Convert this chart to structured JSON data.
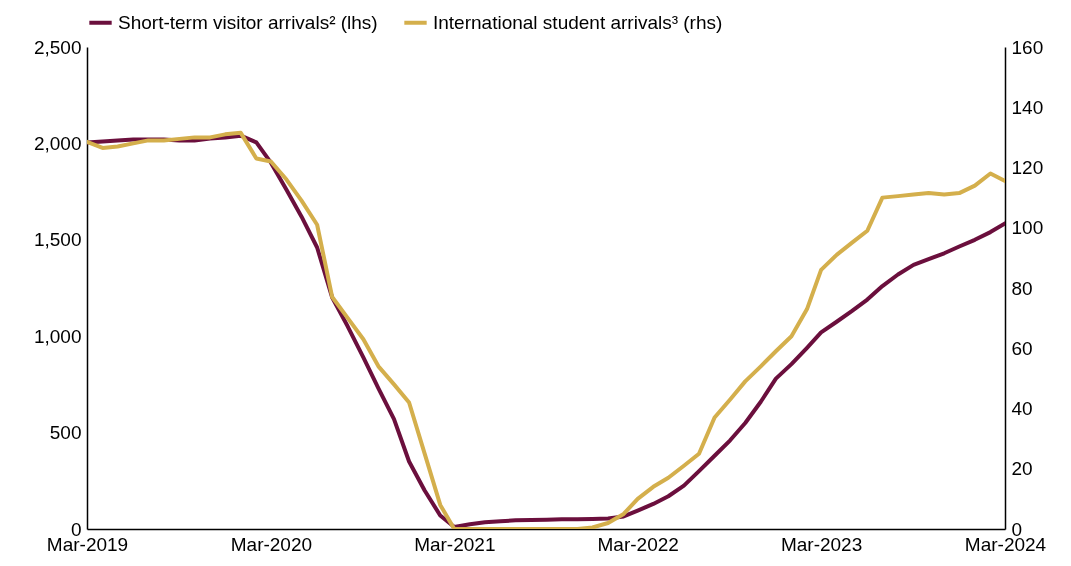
{
  "chart_data": {
    "type": "line",
    "legend": "top",
    "x": [
      "2019-03",
      "2019-04",
      "2019-05",
      "2019-06",
      "2019-07",
      "2019-08",
      "2019-09",
      "2019-10",
      "2019-11",
      "2019-12",
      "2020-01",
      "2020-02",
      "2020-03",
      "2020-04",
      "2020-05",
      "2020-06",
      "2020-07",
      "2020-08",
      "2020-09",
      "2020-10",
      "2020-11",
      "2020-12",
      "2021-01",
      "2021-02",
      "2021-03",
      "2021-04",
      "2021-05",
      "2021-06",
      "2021-07",
      "2021-08",
      "2021-09",
      "2021-10",
      "2021-11",
      "2021-12",
      "2022-01",
      "2022-02",
      "2022-03",
      "2022-04",
      "2022-05",
      "2022-06",
      "2022-07",
      "2022-08",
      "2022-09",
      "2022-10",
      "2022-11",
      "2022-12",
      "2023-01",
      "2023-02",
      "2023-03",
      "2023-04",
      "2023-05",
      "2023-06",
      "2023-07",
      "2023-08",
      "2023-09",
      "2023-10",
      "2023-11",
      "2023-12",
      "2024-01",
      "2024-02",
      "2024-03"
    ],
    "xlim": [
      "2019-03",
      "2024-03"
    ],
    "xticks": [
      {
        "value": "2019-03",
        "label": "Mar-2019"
      },
      {
        "value": "2020-03",
        "label": "Mar-2020"
      },
      {
        "value": "2021-03",
        "label": "Mar-2021"
      },
      {
        "value": "2022-03",
        "label": "Mar-2022"
      },
      {
        "value": "2023-03",
        "label": "Mar-2023"
      },
      {
        "value": "2024-03",
        "label": "Mar-2024"
      }
    ],
    "ylim": [
      0,
      2500
    ],
    "yticks": [
      0,
      {
        "value": 500,
        "label": "500"
      },
      {
        "value": 1000,
        "label": "1,000"
      },
      {
        "value": 1500,
        "label": "1,500"
      },
      {
        "value": 2000,
        "label": "2,000"
      },
      {
        "value": 2500,
        "label": "2,500"
      }
    ],
    "y2lim": [
      0,
      160
    ],
    "y2ticks": [
      0,
      20,
      40,
      60,
      80,
      100,
      120,
      140,
      160
    ],
    "series": [
      {
        "name": "Short-term visitor arrivals² (lhs)",
        "color": "#6b0f3d",
        "values": [
          2005,
          2010,
          2015,
          2020,
          2020,
          2020,
          2015,
          2015,
          2025,
          2030,
          2040,
          2005,
          1900,
          1760,
          1620,
          1460,
          1200,
          1050,
          890,
          730,
          570,
          350,
          200,
          70,
          10,
          25,
          35,
          40,
          45,
          47,
          48,
          50,
          50,
          52,
          55,
          65,
          95,
          130,
          170,
          225,
          300,
          380,
          460,
          550,
          660,
          780,
          855,
          940,
          1020,
          1075,
          1130,
          1190,
          1260,
          1320,
          1370,
          1400,
          1430,
          1465,
          1500,
          1540,
          1585
        ]
      },
      {
        "name": "International student arrivals³ (rhs)",
        "color": "#d4af4c",
        "axis": "y2",
        "values": [
          128.5,
          126.5,
          127,
          128,
          129,
          129,
          129.5,
          130,
          130,
          131,
          131.5,
          123,
          122,
          116,
          109,
          101,
          77,
          70,
          63,
          54,
          48,
          42,
          25,
          8,
          0,
          0,
          0,
          0,
          0,
          0,
          0,
          0,
          0,
          0.5,
          2,
          5,
          10,
          14,
          17,
          21,
          25,
          37,
          43,
          49,
          54,
          59,
          64,
          73,
          86,
          91,
          95,
          99,
          110,
          110.5,
          111,
          111.5,
          111,
          111.5,
          114,
          118,
          115.5
        ]
      }
    ]
  }
}
